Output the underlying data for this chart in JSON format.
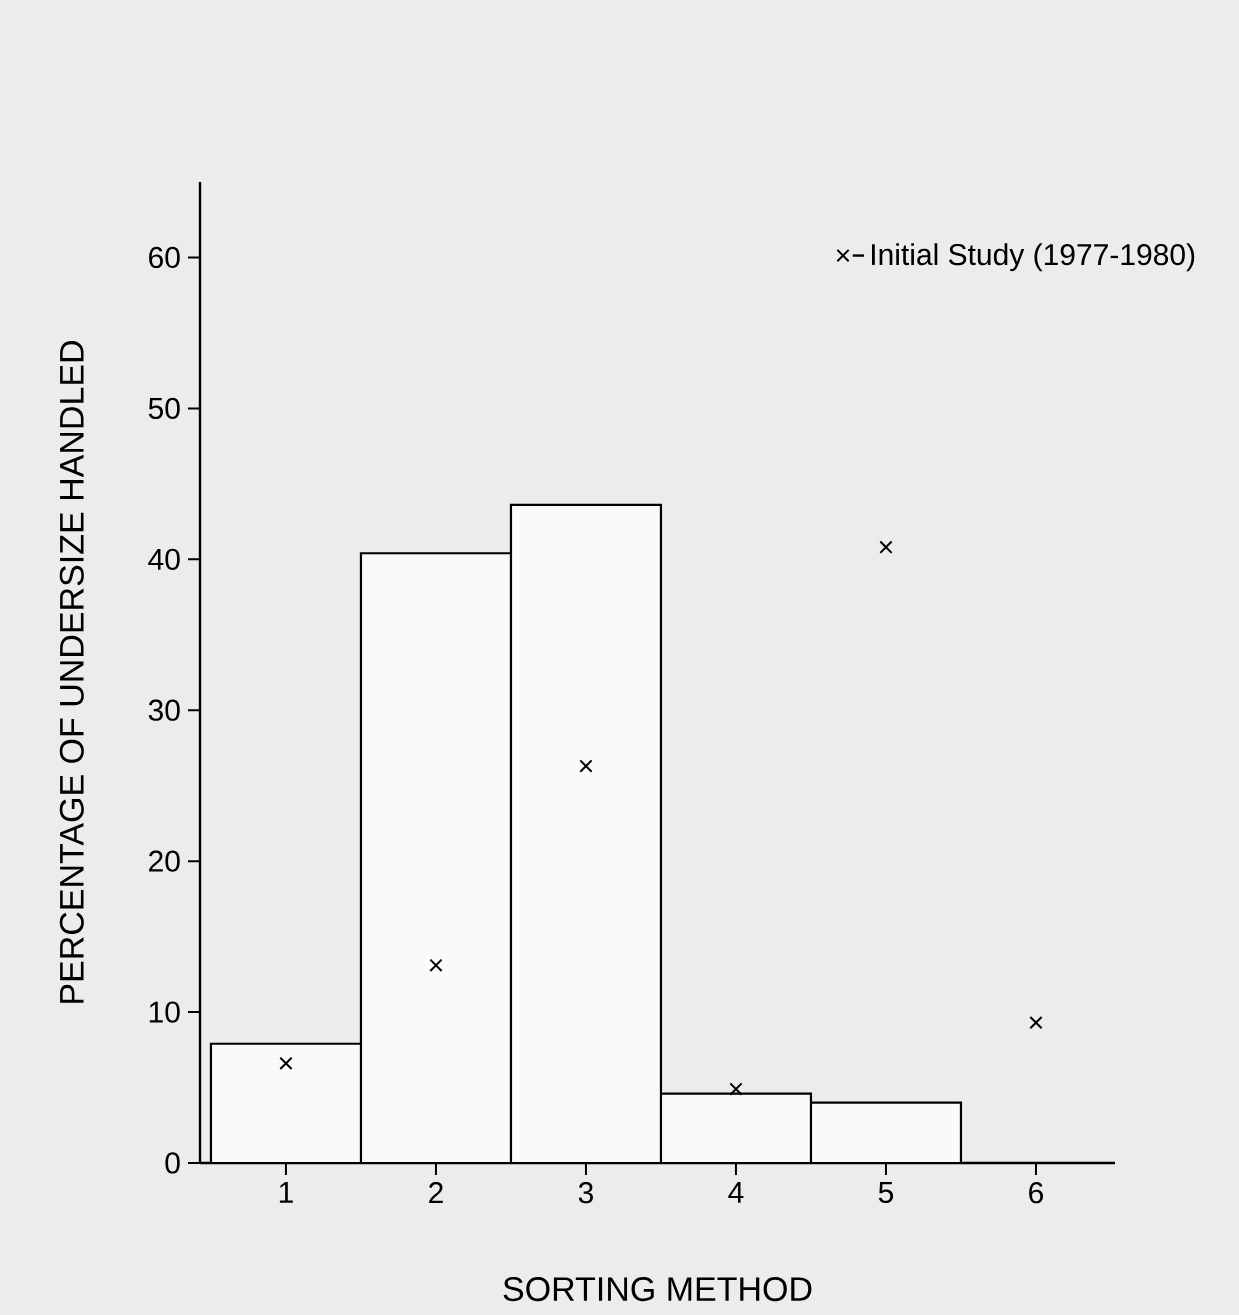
{
  "chart_data": {
    "type": "bar",
    "xlabel": "SORTING METHOD",
    "ylabel": "PERCENTAGE OF UNDERSIZE HANDLED",
    "categories": [
      "1",
      "2",
      "3",
      "4",
      "5",
      "6"
    ],
    "series": [
      {
        "color": "#fafafa",
        "values": [
          7.9,
          40.4,
          43.6,
          4.6,
          4.0,
          null
        ]
      },
      {
        "type": "scatter",
        "name": "Initial Study (1977-1980)",
        "color": "#000000",
        "marker": "cross",
        "x": [
          "1",
          "2",
          "3",
          "4",
          "5",
          "6"
        ],
        "values": [
          6.6,
          13.1,
          26.3,
          4.9,
          40.8,
          9.3
        ]
      }
    ],
    "ylim": [
      0,
      65
    ],
    "yticks": [
      0,
      10,
      20,
      30,
      40,
      50,
      60
    ],
    "legend": "top right"
  }
}
